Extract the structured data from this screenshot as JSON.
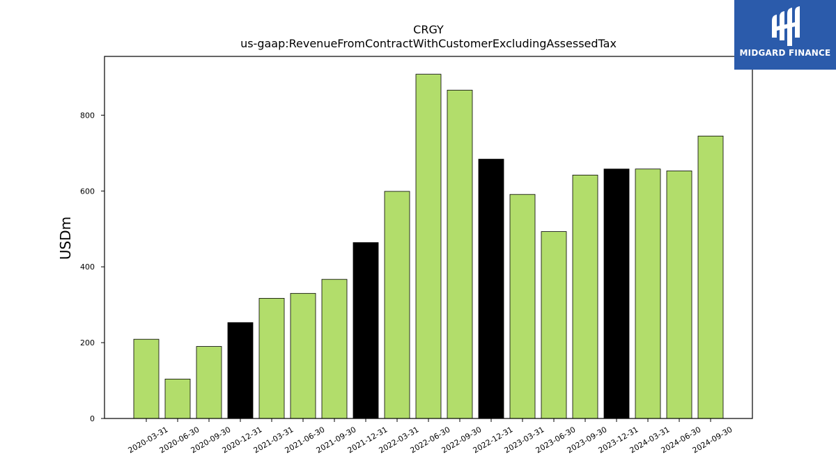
{
  "chart_data": {
    "type": "bar",
    "title": "CRGY",
    "subtitle": "us-gaap:RevenueFromContractWithCustomerExcludingAssessedTax",
    "xlabel": "",
    "ylabel": "USDm",
    "ylim": [
      0,
      955
    ],
    "yticks": [
      0,
      200,
      400,
      600,
      800
    ],
    "grid": false,
    "categories": [
      "2020-03-31",
      "2020-06-30",
      "2020-09-30",
      "2020-12-31",
      "2021-03-31",
      "2021-06-30",
      "2021-09-30",
      "2021-12-31",
      "2022-03-31",
      "2022-06-30",
      "2022-09-30",
      "2022-12-31",
      "2023-03-31",
      "2023-06-30",
      "2023-09-30",
      "2023-12-31",
      "2024-03-31",
      "2024-06-30",
      "2024-09-30"
    ],
    "values": [
      209,
      104,
      190,
      253,
      317,
      330,
      367,
      464,
      599,
      908,
      866,
      684,
      591,
      493,
      642,
      658,
      658,
      653,
      745
    ],
    "bar_colors": [
      "#b2dd6b",
      "#b2dd6b",
      "#b2dd6b",
      "#000000",
      "#b2dd6b",
      "#b2dd6b",
      "#b2dd6b",
      "#000000",
      "#b2dd6b",
      "#b2dd6b",
      "#b2dd6b",
      "#000000",
      "#b2dd6b",
      "#b2dd6b",
      "#b2dd6b",
      "#000000",
      "#b2dd6b",
      "#b2dd6b",
      "#b2dd6b"
    ]
  },
  "logo": {
    "text": "MIDGARD FINANCE",
    "background": "#2b5bab"
  }
}
